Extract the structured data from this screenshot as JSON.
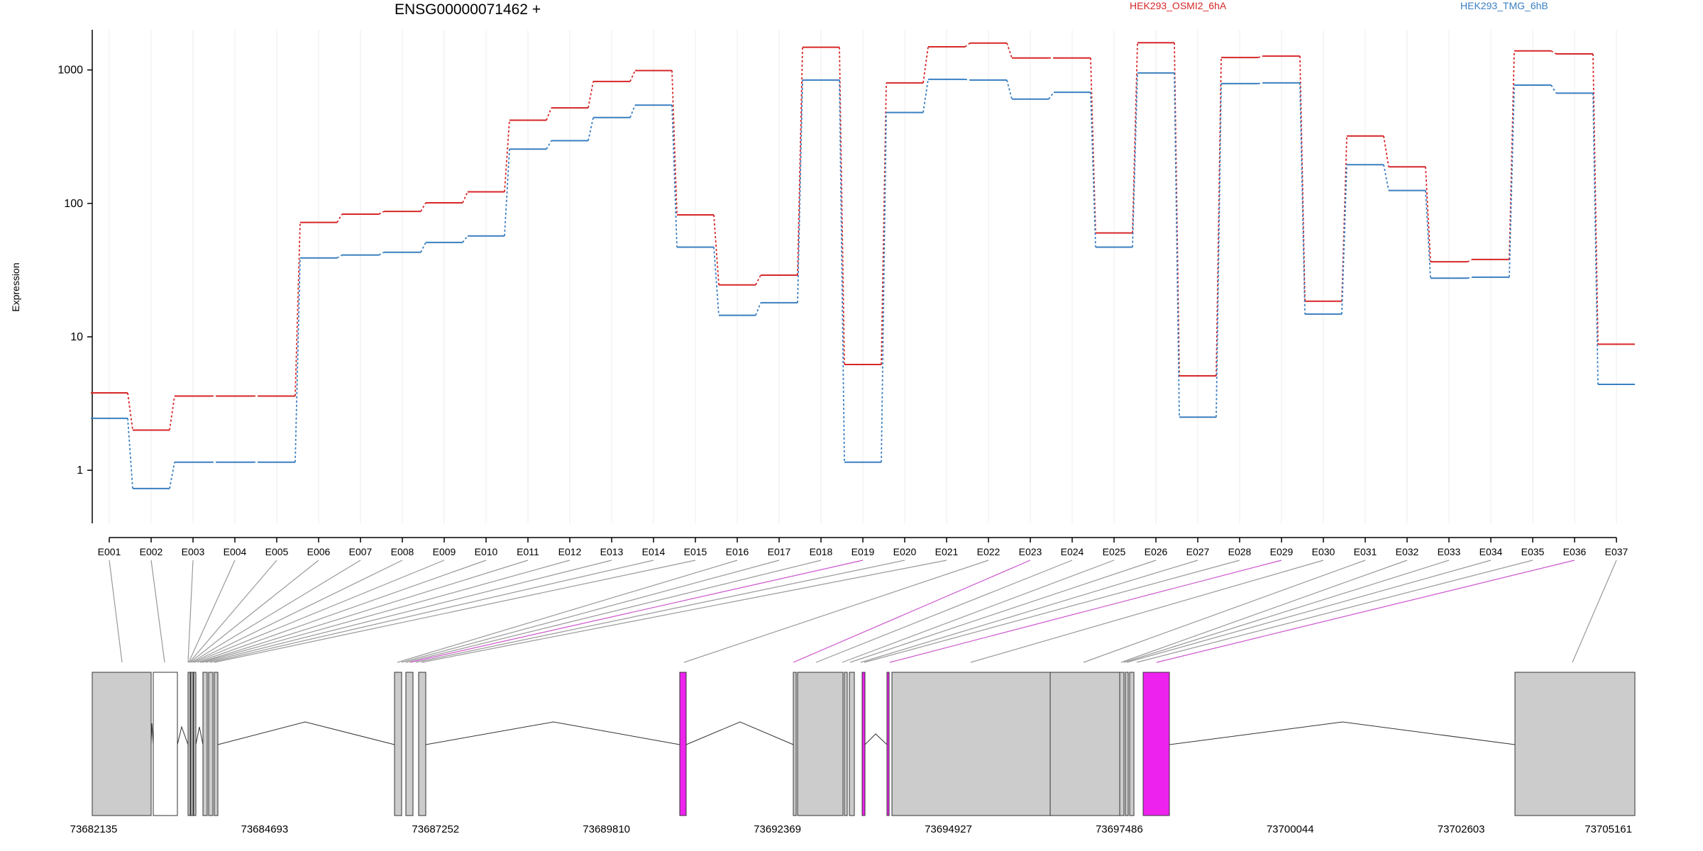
{
  "chart_data": {
    "type": "line",
    "title": "ENSG00000071462 +",
    "ylabel": "Expression",
    "y_scale": "log",
    "ylim": [
      0.4,
      2000
    ],
    "y_ticks": [
      1,
      10,
      100,
      1000
    ],
    "y_tick_labels": [
      "1",
      "10",
      "100",
      "1000"
    ],
    "categories": [
      "E001",
      "E002",
      "E003",
      "E004",
      "E005",
      "E006",
      "E007",
      "E008",
      "E009",
      "E010",
      "E011",
      "E012",
      "E013",
      "E014",
      "E015",
      "E016",
      "E017",
      "E018",
      "E019",
      "E020",
      "E021",
      "E022",
      "E023",
      "E024",
      "E025",
      "E026",
      "E027",
      "E028",
      "E029",
      "E030",
      "E031",
      "E032",
      "E033",
      "E034",
      "E035",
      "E036",
      "E037"
    ],
    "series": [
      {
        "name": "HEK293_OSMI2_6hA",
        "color": "#d62728",
        "values": [
          3.8,
          2.0,
          3.6,
          3.6,
          3.6,
          72,
          83,
          87,
          101,
          122,
          420,
          520,
          820,
          990,
          82,
          24.5,
          29,
          1480,
          6.2,
          800,
          1490,
          1590,
          1230,
          1230,
          60,
          1600,
          5.1,
          1240,
          1270,
          18.5,
          320,
          188,
          36.5,
          38,
          1390,
          1320,
          8.8
        ]
      },
      {
        "name": "HEK293_TMG_6hB",
        "color": "#3a7fc1",
        "values": [
          2.45,
          0.73,
          1.15,
          1.15,
          1.15,
          39,
          41,
          43,
          51,
          57,
          255,
          295,
          440,
          545,
          47,
          14.5,
          18,
          840,
          1.15,
          480,
          850,
          840,
          605,
          680,
          47,
          950,
          2.5,
          790,
          800,
          14.8,
          195,
          125,
          27.5,
          28,
          770,
          670,
          4.4
        ]
      }
    ],
    "genomic_axis": {
      "tick_labels": [
        "73682135",
        "73684693",
        "73687252",
        "73689810",
        "73692369",
        "73694927",
        "73697486",
        "73700044",
        "73702603",
        "73705161"
      ]
    },
    "highlight_exons": [
      "E019",
      "E023",
      "E029",
      "E036"
    ],
    "highlight_color": "#ee22ee",
    "exon_fill": "#cccccc"
  }
}
